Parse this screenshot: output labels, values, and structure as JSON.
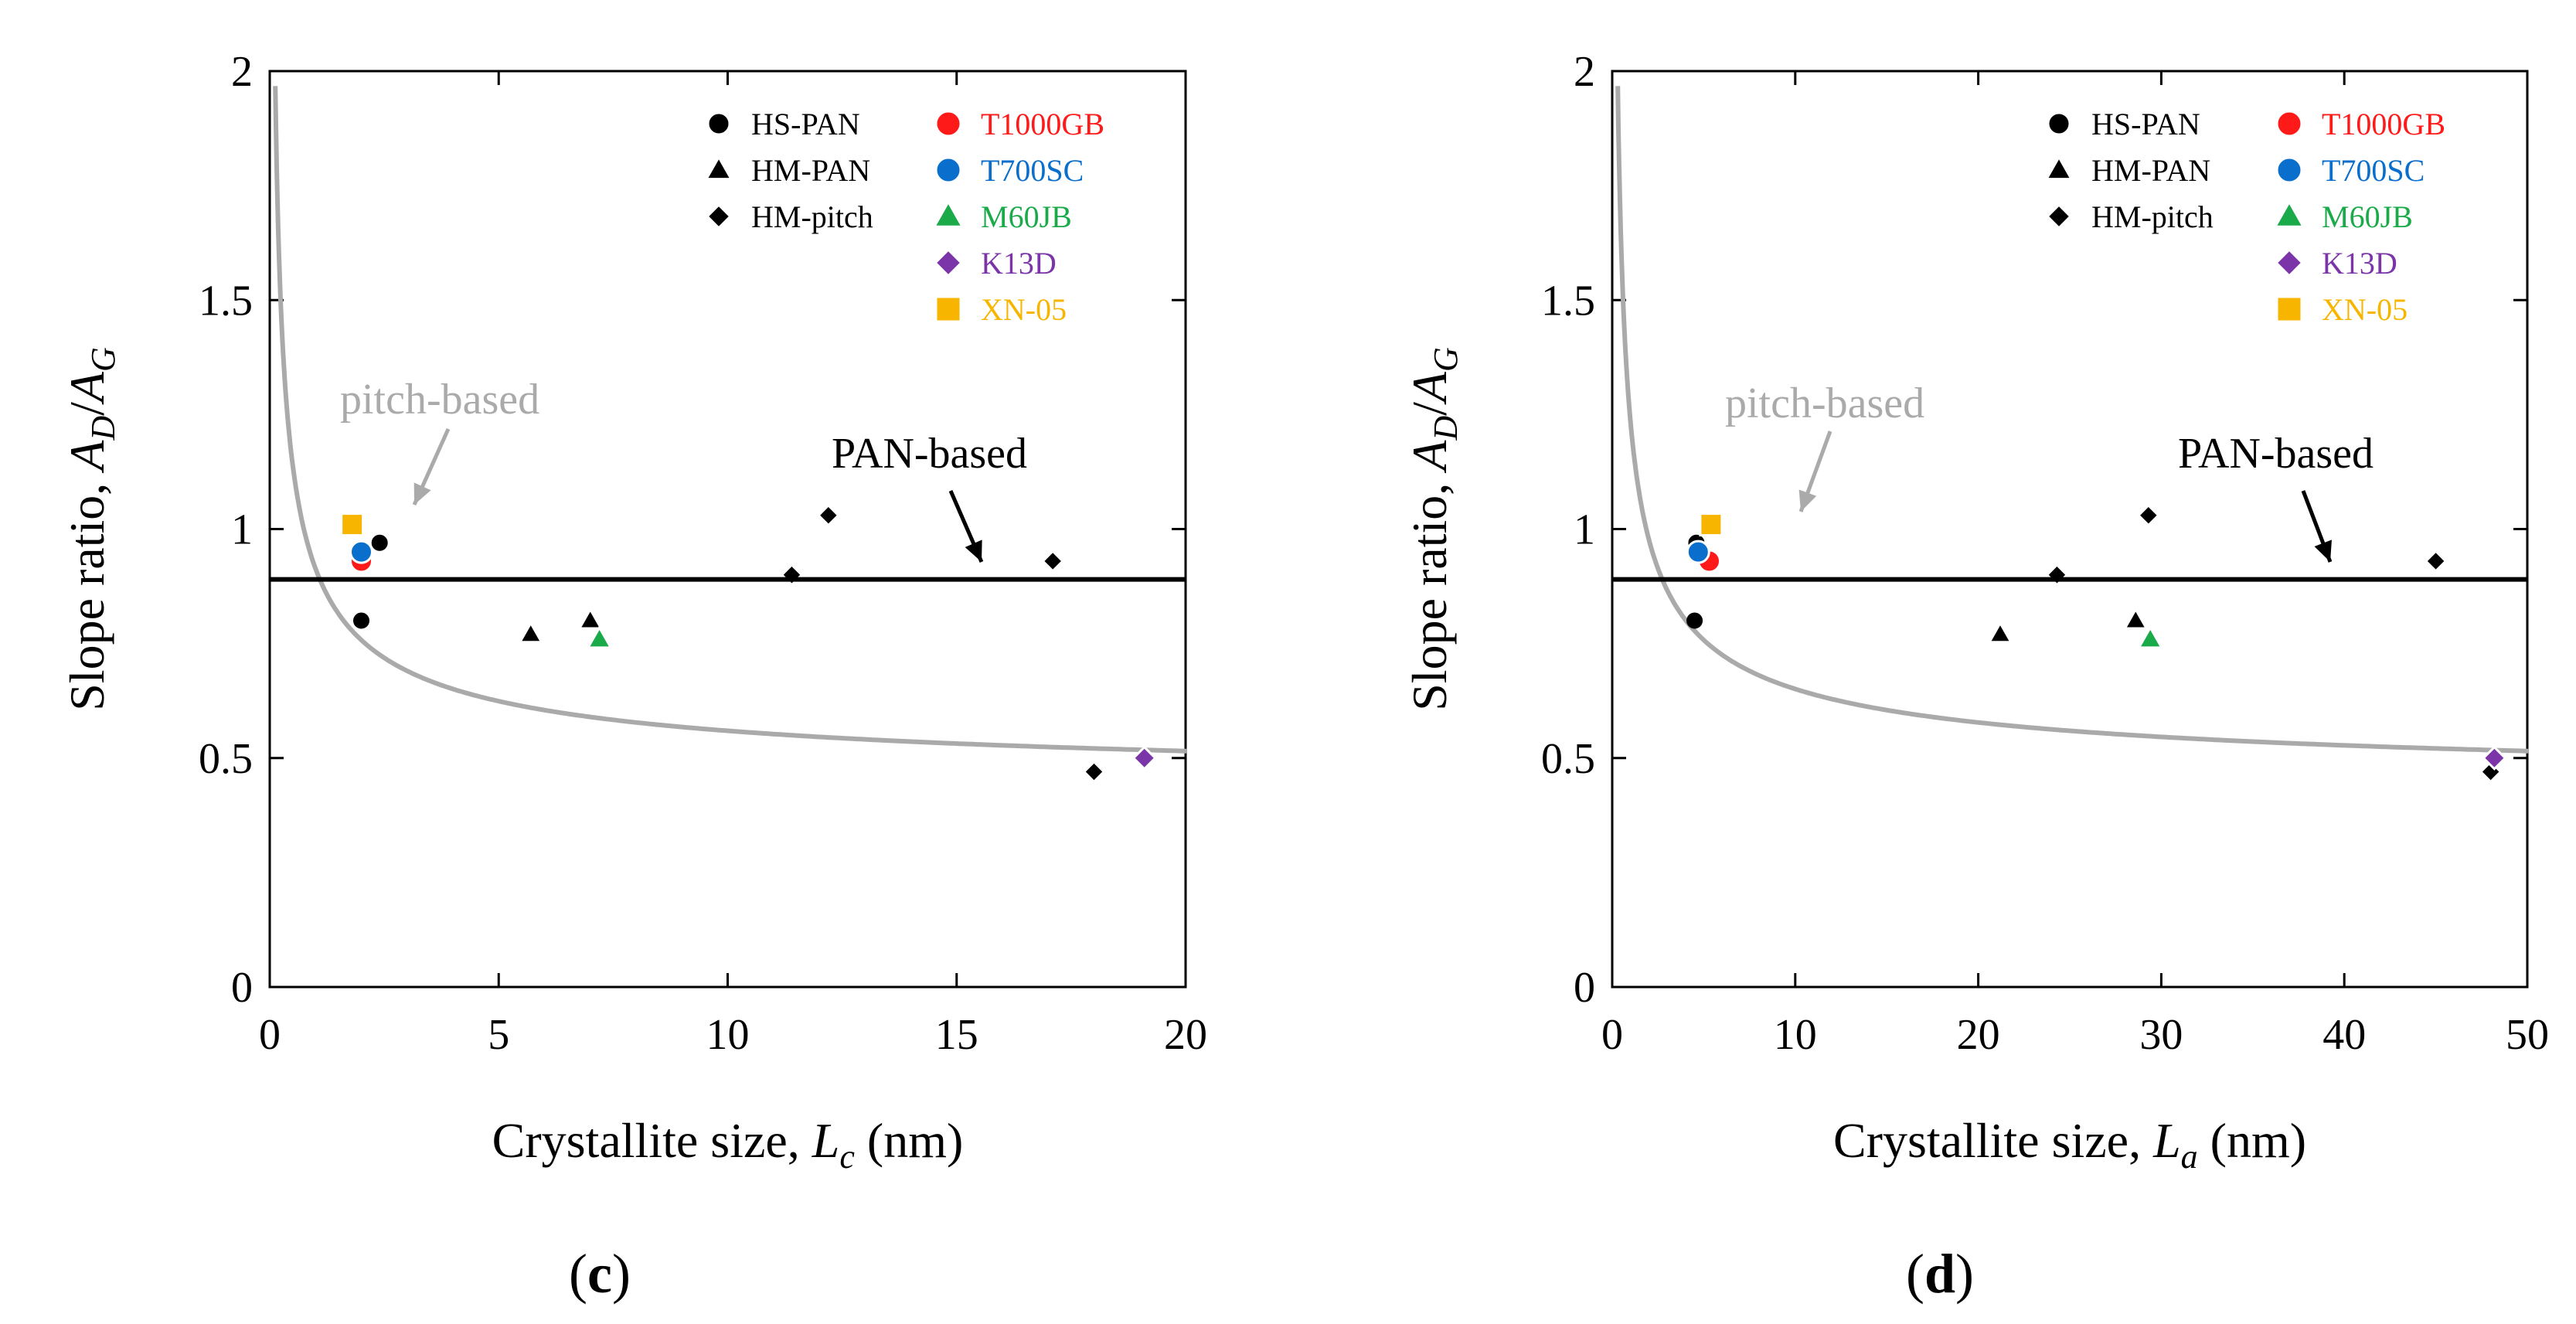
{
  "chart_data": [
    {
      "type": "scatter",
      "panel_label": "(c)",
      "panel_letter": "c",
      "xlabel_prefix": "Crystallite size, ",
      "xlabel_var": "L",
      "xlabel_sub": "c",
      "xlabel_suffix": " (nm)",
      "ylabel_prefix": "Slope ratio, ",
      "ylabel_var1": "A",
      "ylabel_sub1": "D",
      "ylabel_slash": "/",
      "ylabel_var2": "A",
      "ylabel_sub2": "G",
      "xlim": [
        0,
        20
      ],
      "ylim": [
        0,
        2
      ],
      "xticks": [
        0,
        5,
        10,
        15,
        20
      ],
      "xtick_labels": [
        "0",
        "5",
        "10",
        "15",
        "20"
      ],
      "yticks": [
        0,
        0.5,
        1,
        1.5,
        2
      ],
      "ytick_labels": [
        "0",
        "0.5",
        "1",
        "1.5",
        "2"
      ],
      "grid": false,
      "legend_position": "top-right",
      "pan_line": {
        "label": "PAN-based",
        "y": 0.89
      },
      "pitch_curve": {
        "label": "pitch-based",
        "a": 0.4,
        "b": 0.04,
        "c": 0.08
      },
      "series": [
        {
          "name": "HS-PAN",
          "marker": "circle",
          "color": "#000000",
          "x": [
            2.0,
            2.4
          ],
          "y": [
            0.8,
            0.97
          ]
        },
        {
          "name": "HM-PAN",
          "marker": "triangle",
          "color": "#000000",
          "x": [
            5.7,
            7.0
          ],
          "y": [
            0.77,
            0.8
          ]
        },
        {
          "name": "HM-pitch",
          "marker": "diamond",
          "color": "#000000",
          "x": [
            11.4,
            12.2,
            17.1,
            18.0
          ],
          "y": [
            0.9,
            1.03,
            0.93,
            0.47
          ]
        },
        {
          "name": "T1000GB",
          "marker": "circle",
          "color": "#ff1a1a",
          "x": [
            2.0
          ],
          "y": [
            0.93
          ]
        },
        {
          "name": "T700SC",
          "marker": "circle",
          "color": "#0a6fcc",
          "x": [
            2.0
          ],
          "y": [
            0.95
          ]
        },
        {
          "name": "M60JB",
          "marker": "triangle",
          "color": "#1aaa4a",
          "x": [
            7.2
          ],
          "y": [
            0.76
          ]
        },
        {
          "name": "K13D",
          "marker": "diamond",
          "color": "#7b35a8",
          "x": [
            19.1
          ],
          "y": [
            0.5
          ]
        },
        {
          "name": "XN-05",
          "marker": "square",
          "color": "#f7b500",
          "x": [
            1.8
          ],
          "y": [
            1.01
          ]
        }
      ],
      "legend_left": [
        "HS-PAN",
        "HM-PAN",
        "HM-pitch"
      ],
      "legend_right": [
        "T1000GB",
        "T700SC",
        "M60JB",
        "K13D",
        "XN-05"
      ]
    },
    {
      "type": "scatter",
      "panel_label": "(d)",
      "panel_letter": "d",
      "xlabel_prefix": "Crystallite size, ",
      "xlabel_var": "L",
      "xlabel_sub": "a",
      "xlabel_suffix": " (nm)",
      "ylabel_prefix": "Slope ratio, ",
      "ylabel_var1": "A",
      "ylabel_sub1": "D",
      "ylabel_slash": "/",
      "ylabel_var2": "A",
      "ylabel_sub2": "G",
      "xlim": [
        0,
        50
      ],
      "ylim": [
        0,
        2
      ],
      "xticks": [
        0,
        10,
        20,
        30,
        40,
        50
      ],
      "xtick_labels": [
        "0",
        "10",
        "20",
        "30",
        "40",
        "50"
      ],
      "yticks": [
        0,
        0.5,
        1,
        1.5,
        2
      ],
      "ytick_labels": [
        "0",
        "0.5",
        "1",
        "1.5",
        "2"
      ],
      "grid": false,
      "legend_position": "top-right",
      "pan_line": {
        "label": "PAN-based",
        "y": 0.89
      },
      "pitch_curve": {
        "label": "pitch-based",
        "a": 0.4,
        "b": 0.1,
        "c": 0.2
      },
      "series": [
        {
          "name": "HS-PAN",
          "marker": "circle",
          "color": "#000000",
          "x": [
            4.5,
            4.6
          ],
          "y": [
            0.8,
            0.97
          ]
        },
        {
          "name": "HM-PAN",
          "marker": "triangle",
          "color": "#000000",
          "x": [
            21.2,
            28.6
          ],
          "y": [
            0.77,
            0.8
          ]
        },
        {
          "name": "HM-pitch",
          "marker": "diamond",
          "color": "#000000",
          "x": [
            24.3,
            29.3,
            45.0,
            48.0
          ],
          "y": [
            0.9,
            1.03,
            0.93,
            0.47
          ]
        },
        {
          "name": "T1000GB",
          "marker": "circle",
          "color": "#ff1a1a",
          "x": [
            5.3
          ],
          "y": [
            0.93
          ]
        },
        {
          "name": "T700SC",
          "marker": "circle",
          "color": "#0a6fcc",
          "x": [
            4.7
          ],
          "y": [
            0.95
          ]
        },
        {
          "name": "M60JB",
          "marker": "triangle",
          "color": "#1aaa4a",
          "x": [
            29.4
          ],
          "y": [
            0.76
          ]
        },
        {
          "name": "K13D",
          "marker": "diamond",
          "color": "#7b35a8",
          "x": [
            48.2
          ],
          "y": [
            0.5
          ]
        },
        {
          "name": "XN-05",
          "marker": "square",
          "color": "#f7b500",
          "x": [
            5.4
          ],
          "y": [
            1.01
          ]
        }
      ],
      "legend_left": [
        "HS-PAN",
        "HM-PAN",
        "HM-pitch"
      ],
      "legend_right": [
        "T1000GB",
        "T700SC",
        "M60JB",
        "K13D",
        "XN-05"
      ]
    }
  ]
}
